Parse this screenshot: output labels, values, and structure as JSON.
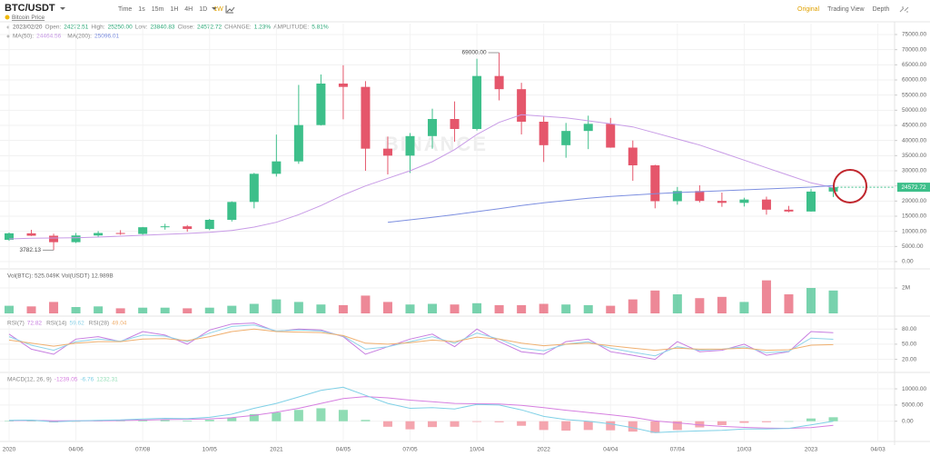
{
  "toolbar": {
    "symbol": "BTC/USDT",
    "subtitle": "Bitcoin Price",
    "intervals": [
      "Time",
      "1s",
      "15m",
      "1H",
      "4H",
      "1D",
      "1W"
    ],
    "active_interval": 6,
    "views": [
      "Original",
      "Trading View",
      "Depth"
    ],
    "active_view": 0
  },
  "info": {
    "date": "2023/02/20",
    "fields": [
      {
        "label": "Open:",
        "value": "24272.51"
      },
      {
        "label": "High:",
        "value": "25250.00"
      },
      {
        "label": "Low:",
        "value": "23840.83"
      },
      {
        "label": "Close:",
        "value": "24572.72"
      },
      {
        "label": "CHANGE:",
        "value": "1.23%"
      },
      {
        "label": "AMPLITUDE:",
        "value": "5.81%"
      }
    ]
  },
  "watermark": "BINANCE",
  "chart_data": [
    {
      "type": "candlestick",
      "grid": true,
      "up_color": "#3dbf8a",
      "down_color": "#e5566b",
      "categories": [
        "2020",
        null,
        null,
        "04/06",
        null,
        null,
        "07/08",
        null,
        null,
        "10/05",
        null,
        null,
        "2021",
        null,
        null,
        "04/05",
        null,
        null,
        "07/05",
        null,
        null,
        "10/04",
        null,
        null,
        "2022",
        null,
        null,
        "04/04",
        null,
        null,
        "07/04",
        null,
        null,
        "10/03",
        null,
        null,
        "2023",
        null,
        null,
        "04/03"
      ],
      "open": [
        7200,
        9350,
        8550,
        6420,
        8630,
        9450,
        9140,
        11350,
        11650,
        10780,
        13800,
        19700,
        29000,
        33100,
        45100,
        58800,
        57700,
        37300,
        35000,
        41460,
        47100,
        43800,
        61300,
        56950,
        46200,
        38450,
        43150,
        45500,
        37650,
        31800,
        19950,
        23300,
        20050,
        19400,
        20500,
        17150,
        16550,
        23130,
        null,
        null
      ],
      "high": [
        9600,
        10500,
        9200,
        9450,
        10080,
        10380,
        11450,
        12480,
        12070,
        14100,
        19900,
        29300,
        41950,
        58350,
        61800,
        64850,
        59600,
        41300,
        42450,
        50500,
        52900,
        67000,
        69000,
        59050,
        47990,
        45800,
        48200,
        47450,
        40000,
        31980,
        24650,
        25200,
        22800,
        21100,
        21450,
        18400,
        23950,
        25250,
        null,
        null
      ],
      "low": [
        6850,
        8450,
        3782.13,
        6150,
        8100,
        8850,
        8900,
        10550,
        9880,
        10400,
        13250,
        17600,
        28100,
        32300,
        44950,
        47000,
        30000,
        28800,
        29300,
        37300,
        39600,
        43300,
        53250,
        42000,
        32900,
        34300,
        37150,
        37600,
        26700,
        17600,
        18800,
        19550,
        18100,
        18200,
        15500,
        16300,
        16500,
        21350,
        null,
        null
      ],
      "close": [
        9350,
        8550,
        6420,
        8630,
        9450,
        9140,
        11350,
        11650,
        10780,
        13800,
        19700,
        29000,
        33100,
        45100,
        58800,
        57700,
        37300,
        35000,
        41460,
        47100,
        43800,
        61300,
        56950,
        46200,
        38450,
        43150,
        45500,
        37650,
        31800,
        19950,
        23300,
        20050,
        19400,
        20500,
        17150,
        16550,
        23130,
        24572.72,
        null,
        null
      ],
      "series": [
        {
          "name": "MA(50):",
          "color": "#c89be6",
          "values": [
            7500,
            7700,
            7800,
            7900,
            8100,
            8400,
            8700,
            9000,
            9300,
            9700,
            10300,
            11400,
            13000,
            15500,
            18500,
            22000,
            25000,
            27500,
            30000,
            33000,
            37000,
            42000,
            46000,
            48500,
            48000,
            47500,
            46500,
            45500,
            44500,
            42500,
            40500,
            38500,
            36000,
            33500,
            31000,
            28500,
            26000,
            24464.56,
            null,
            null
          ]
        },
        {
          "name": "MA(200):",
          "color": "#7d8fe0",
          "values": [
            null,
            null,
            null,
            null,
            null,
            null,
            null,
            null,
            null,
            null,
            null,
            null,
            null,
            null,
            null,
            null,
            null,
            13000,
            13800,
            14600,
            15500,
            16500,
            17500,
            18500,
            19400,
            20200,
            20900,
            21500,
            22000,
            22400,
            22800,
            23100,
            23400,
            23700,
            24000,
            24300,
            24600,
            25096.01,
            null,
            null
          ]
        }
      ],
      "ylim": [
        -2100,
        76800
      ],
      "yticks": [
        {
          "value": 0,
          "label": "0.00"
        },
        {
          "value": 5000,
          "label": "5000.00"
        },
        {
          "value": 10000,
          "label": "10000.00"
        },
        {
          "value": 15000,
          "label": "15000.00"
        },
        {
          "value": 20000,
          "label": "20000.00"
        },
        {
          "value": 25000,
          "label": "25000.00"
        },
        {
          "value": 30000,
          "label": "30000.00"
        },
        {
          "value": 35000,
          "label": "35000.00"
        },
        {
          "value": 40000,
          "label": "40000.00"
        },
        {
          "value": 45000,
          "label": "45000.00"
        },
        {
          "value": 50000,
          "label": "50000.00"
        },
        {
          "value": 55000,
          "label": "55000.00"
        },
        {
          "value": 60000,
          "label": "60000.00"
        },
        {
          "value": 65000,
          "label": "65000.00"
        },
        {
          "value": 70000,
          "label": "70000.00"
        },
        {
          "value": 75000,
          "label": "75000.00"
        }
      ],
      "high_label": "69000.00",
      "low_label": "3782.13"
    },
    {
      "type": "bar",
      "title": "Vol(BTC): 525.049K Vol(USDT) 12.989B",
      "values": [
        600000,
        550000,
        900000,
        500000,
        550000,
        400000,
        450000,
        450000,
        400000,
        450000,
        600000,
        750000,
        1100000,
        900000,
        700000,
        650000,
        1400000,
        900000,
        700000,
        750000,
        700000,
        800000,
        650000,
        650000,
        750000,
        700000,
        650000,
        600000,
        1100000,
        1800000,
        1500000,
        1200000,
        1300000,
        900000,
        2600000,
        1500000,
        2000000,
        1800000,
        null,
        null
      ],
      "ylim": [
        0,
        3360000
      ],
      "yticks": [
        {
          "value": 2000000,
          "label": "2M"
        }
      ]
    },
    {
      "type": "line",
      "series": [
        {
          "name": "RSI(7)",
          "color": "#c77de0",
          "values": [
            70,
            40,
            30,
            60,
            65,
            55,
            75,
            68,
            50,
            78,
            90,
            92,
            75,
            80,
            78,
            65,
            30,
            45,
            60,
            70,
            45,
            80,
            55,
            35,
            30,
            55,
            60,
            35,
            28,
            20,
            55,
            35,
            38,
            50,
            28,
            35,
            75,
            72.82,
            null,
            null
          ]
        },
        {
          "name": "RSI(14)",
          "color": "#8fd3e8",
          "values": [
            65,
            48,
            38,
            55,
            60,
            56,
            68,
            66,
            55,
            72,
            85,
            88,
            76,
            78,
            76,
            66,
            40,
            45,
            55,
            65,
            52,
            72,
            60,
            42,
            37,
            50,
            55,
            42,
            34,
            27,
            45,
            38,
            40,
            45,
            33,
            36,
            62,
            59.62,
            null,
            null
          ]
        },
        {
          "name": "RSI(28)",
          "color": "#f0b070",
          "values": [
            58,
            52,
            46,
            52,
            55,
            55,
            60,
            61,
            57,
            65,
            75,
            80,
            75,
            74,
            73,
            67,
            52,
            50,
            53,
            58,
            55,
            64,
            60,
            52,
            47,
            50,
            52,
            47,
            42,
            38,
            42,
            40,
            40,
            42,
            38,
            39,
            48,
            49.04,
            null,
            null
          ]
        }
      ],
      "ylim": [
        3,
        102
      ],
      "yticks": [
        {
          "value": 80,
          "label": "80.00"
        },
        {
          "value": 50,
          "label": "50.00"
        },
        {
          "value": 20,
          "label": "20.00"
        }
      ]
    },
    {
      "type": "macd",
      "title": "MACD(12, 26, 9)",
      "series": [
        {
          "kind": "line",
          "color": "#d67fe0",
          "values": [
            200,
            250,
            150,
            120,
            150,
            220,
            350,
            500,
            600,
            750,
            1100,
            1800,
            2800,
            4000,
            5500,
            7000,
            7600,
            7200,
            6500,
            6000,
            5500,
            5400,
            5300,
            4900,
            4200,
            3400,
            2700,
            2000,
            1200,
            100,
            -500,
            -1100,
            -1600,
            -1900,
            -2100,
            -2200,
            -1950,
            -1239.05,
            null,
            null
          ]
        },
        {
          "kind": "line",
          "color": "#7fd0e6",
          "values": [
            300,
            350,
            -200,
            100,
            300,
            400,
            700,
            900,
            800,
            1200,
            2200,
            4000,
            5500,
            7500,
            9500,
            10500,
            8000,
            5500,
            4000,
            4200,
            3800,
            5200,
            5000,
            3500,
            1500,
            500,
            0,
            -800,
            -2000,
            -3500,
            -3200,
            -3000,
            -2800,
            -2400,
            -2400,
            -2200,
            -1100,
            -6.76,
            null,
            null
          ]
        },
        {
          "kind": "bar",
          "color": "#8fdcb4",
          "negative_color": "#f4a5ae",
          "values": [
            100,
            100,
            -350,
            -20,
            150,
            180,
            350,
            400,
            200,
            450,
            1100,
            2200,
            2700,
            3500,
            4000,
            3500,
            400,
            -1700,
            -2500,
            -1800,
            -1700,
            -200,
            -300,
            -1400,
            -2700,
            -2900,
            -2700,
            -2800,
            -3200,
            -3600,
            -2700,
            -1900,
            -1200,
            -500,
            -300,
            0,
            850,
            1232.31,
            null,
            null
          ]
        }
      ],
      "ylim": [
        -4000,
        14500
      ],
      "yticks": [
        {
          "value": 10000,
          "label": "10000.00"
        },
        {
          "value": 5000,
          "label": "5000.00"
        },
        {
          "value": 0,
          "label": "0.00"
        }
      ]
    }
  ]
}
